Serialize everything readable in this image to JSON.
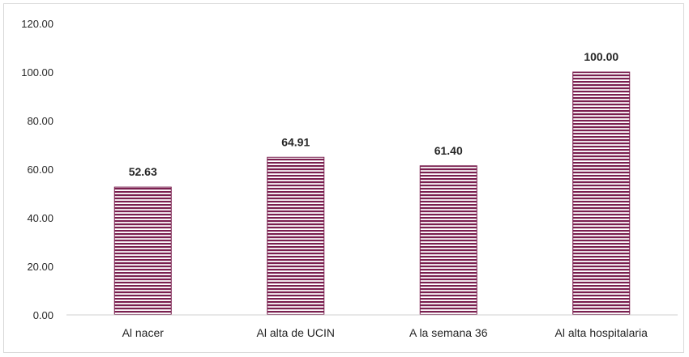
{
  "chart_data": {
    "type": "bar",
    "categories": [
      "Al nacer",
      "Al alta de UCIN",
      "A la semana 36",
      "Al alta hospitalaria"
    ],
    "values": [
      52.63,
      64.91,
      61.4,
      100.0
    ],
    "data_labels": [
      "52.63",
      "64.91",
      "61.40",
      "100.00"
    ],
    "yticks": [
      "0.00",
      "20.00",
      "40.00",
      "60.00",
      "80.00",
      "100.00",
      "120.00"
    ],
    "ylim": [
      0,
      120
    ],
    "grid": false,
    "title": "",
    "xlabel": "",
    "ylabel": "",
    "bar_color": "#7a1f4f",
    "bar_pattern": "horizontal-stripes"
  }
}
